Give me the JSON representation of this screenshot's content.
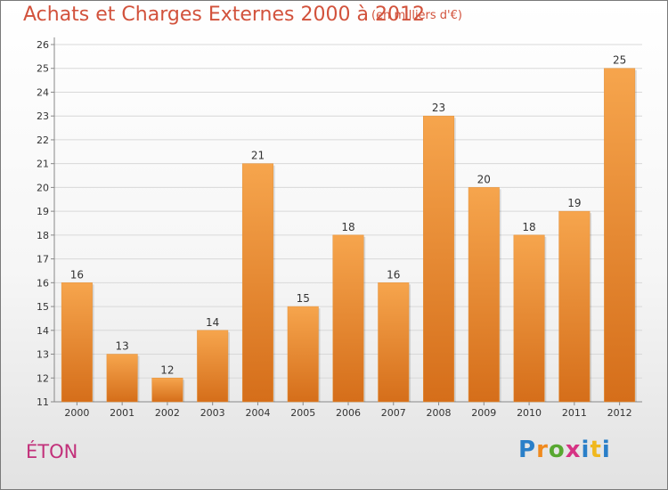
{
  "header": {
    "title": "Achats et Charges Externes 2000 à 2012",
    "subtitle": "(en milliers d'€)"
  },
  "footer": {
    "location": "ÉTON",
    "logo_text": "Proxiti"
  },
  "colors": {
    "title": "#d2523c",
    "location": "#c2307a",
    "bar_light": "#f6a54d",
    "bar_dark": "#d56e1a",
    "grid": "#d8d8d8"
  },
  "chart_data": {
    "type": "bar",
    "title": "Achats et Charges Externes 2000 à 2012",
    "subtitle": "(en milliers d'€)",
    "categories": [
      "2000",
      "2001",
      "2002",
      "2003",
      "2004",
      "2005",
      "2006",
      "2007",
      "2008",
      "2009",
      "2010",
      "2011",
      "2012"
    ],
    "values": [
      16,
      13,
      12,
      14,
      21,
      15,
      18,
      16,
      23,
      20,
      18,
      19,
      25
    ],
    "data_labels": [
      "16",
      "13",
      "12",
      "14",
      "21",
      "15",
      "18",
      "16",
      "23",
      "20",
      "18",
      "19",
      "25"
    ],
    "yticks": [
      "11",
      "12",
      "13",
      "14",
      "15",
      "16",
      "17",
      "18",
      "19",
      "20",
      "21",
      "22",
      "23",
      "24",
      "25",
      "26"
    ],
    "ylim": [
      11,
      26
    ],
    "grid": true,
    "legend": "none",
    "xlabel": "",
    "ylabel": ""
  }
}
